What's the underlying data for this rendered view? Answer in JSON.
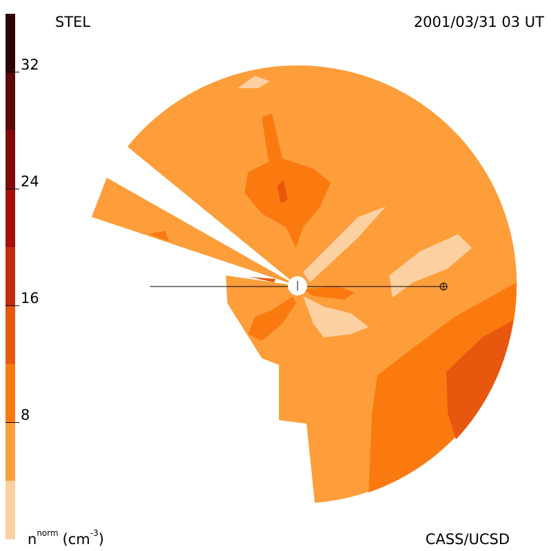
{
  "chart_data": {
    "type": "contour",
    "title": "STEL",
    "subtitle": "2001/03/31 03 UT",
    "credit": "CASS/UCSD",
    "colorbar_label": {
      "symbol": "n",
      "symbol_sup": "norm",
      "unit": "(cm",
      "unit_sup": "-3",
      "unit_close": ")"
    },
    "levels": [
      0,
      4,
      8,
      12,
      16,
      20,
      24,
      28,
      32,
      36
    ],
    "colors": [
      "#fdd0a2",
      "#fd9e3b",
      "#fb7a10",
      "#e8570e",
      "#c52a0a",
      "#a50f0a",
      "#800a0a",
      "#5a0808",
      "#2d0505"
    ],
    "ylim": [
      0,
      36
    ],
    "yticks": [
      8,
      16,
      24,
      32
    ]
  }
}
